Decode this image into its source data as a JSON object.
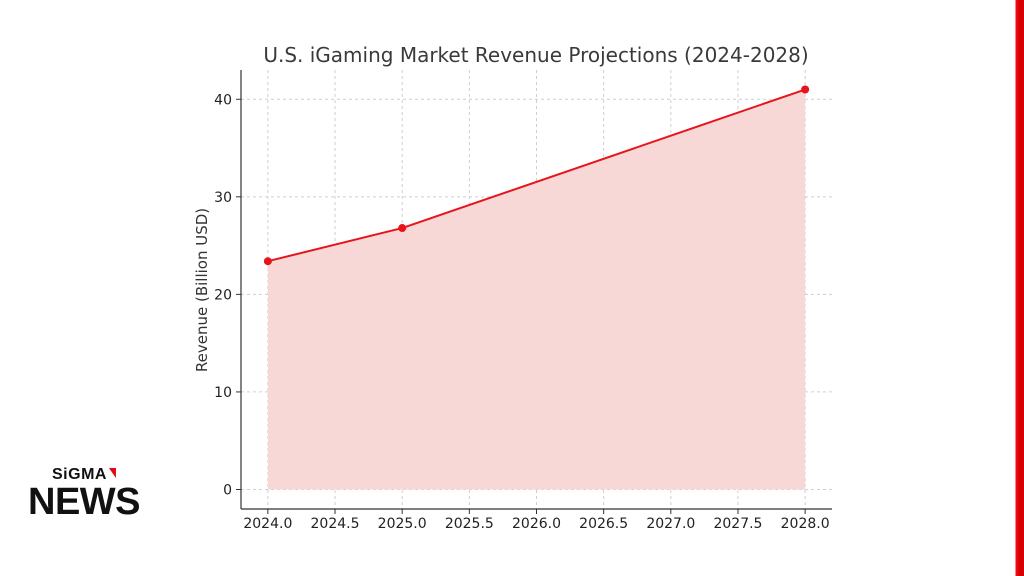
{
  "brand": {
    "sigma": "SiGMA",
    "news": "NEWS",
    "accent_color": "#e30613"
  },
  "chart_data": {
    "type": "area",
    "title": "U.S. iGaming Market Revenue Projections (2024-2028)",
    "xlabel": "",
    "ylabel": "Revenue (Billion USD)",
    "x": [
      2024.0,
      2025.0,
      2028.0
    ],
    "y": [
      23.4,
      26.8,
      41.0
    ],
    "xlim": [
      2023.8,
      2028.2
    ],
    "ylim": [
      -2,
      43
    ],
    "xticks": [
      "2024.0",
      "2024.5",
      "2025.0",
      "2025.5",
      "2026.0",
      "2026.5",
      "2027.0",
      "2027.5",
      "2028.0"
    ],
    "yticks": [
      "0",
      "10",
      "20",
      "30",
      "40"
    ],
    "grid": true,
    "line_color": "#e8141b",
    "fill_color": "#f8d7d7"
  }
}
